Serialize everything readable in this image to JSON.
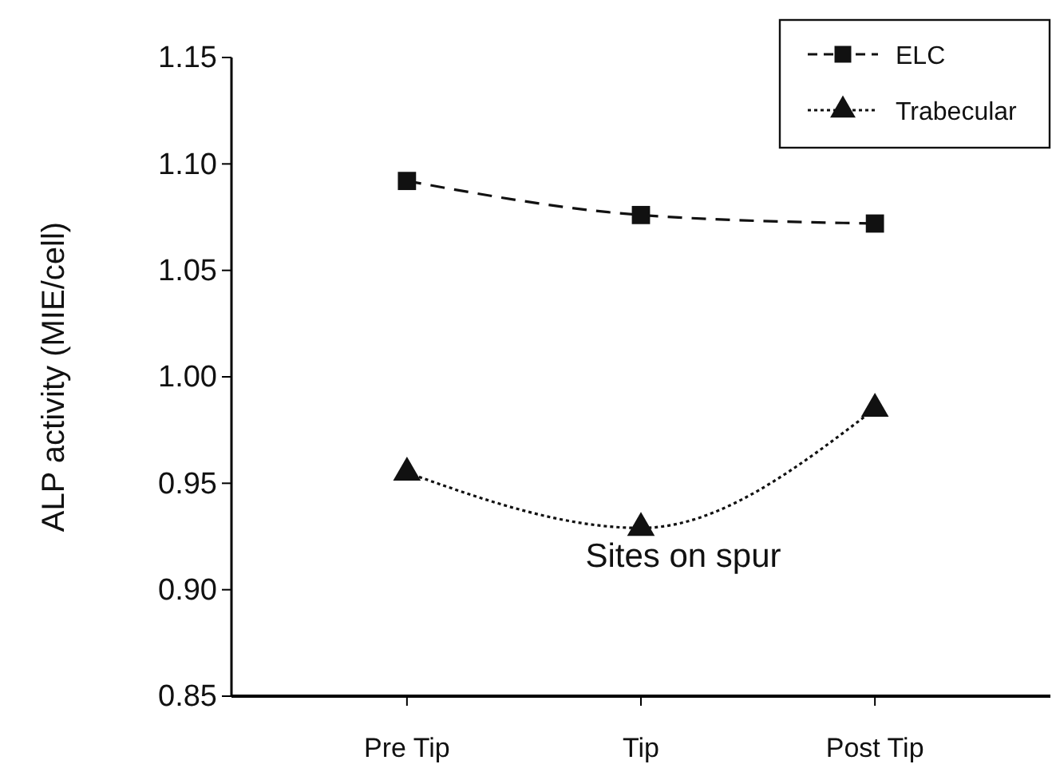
{
  "chart_data": {
    "type": "line",
    "xlabel": "Sites on spur",
    "ylabel": "ALP activity (MIE/cell)",
    "categories": [
      "Pre Tip",
      "Tip",
      "Post Tip"
    ],
    "series": [
      {
        "name": "ELC",
        "color": "#111111",
        "values": [
          1.092,
          1.076,
          1.072
        ],
        "marker": "square",
        "line_style": "dashed"
      },
      {
        "name": "Trabecular",
        "color": "#111111",
        "values": [
          0.955,
          0.929,
          0.985
        ],
        "marker": "triangle",
        "line_style": "dotted"
      }
    ],
    "ylim": [
      0.85,
      1.15
    ],
    "yticks": [
      {
        "value": 0.85,
        "label": "0.85"
      },
      {
        "value": 0.9,
        "label": "0.90"
      },
      {
        "value": 0.95,
        "label": "0.95"
      },
      {
        "value": 1.0,
        "label": "1.00"
      },
      {
        "value": 1.05,
        "label": "1.05"
      },
      {
        "value": 1.1,
        "label": "1.10"
      },
      {
        "value": 1.15,
        "label": "1.15"
      }
    ],
    "grid": false,
    "legend": "top right"
  }
}
